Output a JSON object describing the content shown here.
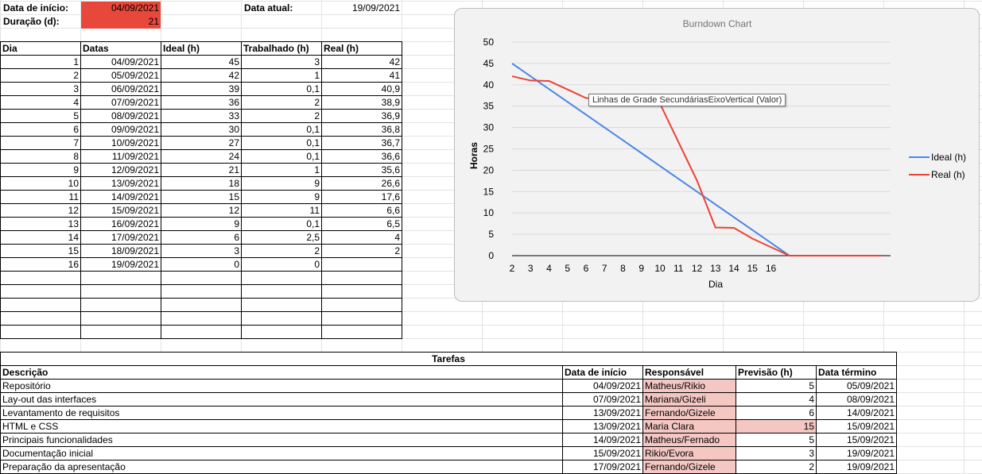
{
  "header": {
    "start_label": "Data de início:",
    "start_value": "04/09/2021",
    "duration_label": "Duração (d):",
    "duration_value": "21",
    "current_label": "Data atual:",
    "current_value": "19/09/2021"
  },
  "burndown_table": {
    "headers": [
      "Dia",
      "Datas",
      "Ideal (h)",
      "Trabalhado (h)",
      "Real (h)"
    ],
    "rows": [
      [
        "1",
        "04/09/2021",
        "45",
        "3",
        "42"
      ],
      [
        "2",
        "05/09/2021",
        "42",
        "1",
        "41"
      ],
      [
        "3",
        "06/09/2021",
        "39",
        "0,1",
        "40,9"
      ],
      [
        "4",
        "07/09/2021",
        "36",
        "2",
        "38,9"
      ],
      [
        "5",
        "08/09/2021",
        "33",
        "2",
        "36,9"
      ],
      [
        "6",
        "09/09/2021",
        "30",
        "0,1",
        "36,8"
      ],
      [
        "7",
        "10/09/2021",
        "27",
        "0,1",
        "36,7"
      ],
      [
        "8",
        "11/09/2021",
        "24",
        "0,1",
        "36,6"
      ],
      [
        "9",
        "12/09/2021",
        "21",
        "1",
        "35,6"
      ],
      [
        "10",
        "13/09/2021",
        "18",
        "9",
        "26,6"
      ],
      [
        "11",
        "14/09/2021",
        "15",
        "9",
        "17,6"
      ],
      [
        "12",
        "15/09/2021",
        "12",
        "11",
        "6,6"
      ],
      [
        "13",
        "16/09/2021",
        "9",
        "0,1",
        "6,5"
      ],
      [
        "14",
        "17/09/2021",
        "6",
        "2,5",
        "4"
      ],
      [
        "15",
        "18/09/2021",
        "3",
        "2",
        "2"
      ],
      [
        "16",
        "19/09/2021",
        "0",
        "0",
        ""
      ]
    ]
  },
  "tasks": {
    "title": "Tarefas",
    "headers": [
      "Descrição",
      "Data de início",
      "Responsável",
      "Previsão (h)",
      "Data término"
    ],
    "rows": [
      [
        "Repositório",
        "04/09/2021",
        "Matheus/Rikio",
        "5",
        "05/09/2021"
      ],
      [
        "Lay-out das interfaces",
        "07/09/2021",
        "Mariana/Gizeli",
        "4",
        "08/09/2021"
      ],
      [
        "Levantamento de requisitos",
        "13/09/2021",
        "Fernando/Gizele",
        "6",
        "14/09/2021"
      ],
      [
        "HTML e CSS",
        "13/09/2021",
        "Maria Clara",
        "15",
        "15/09/2021"
      ],
      [
        "Principais funcionalidades",
        "14/09/2021",
        "Matheus/Fernado",
        "5",
        "15/09/2021"
      ],
      [
        "Documentação inicial",
        "15/09/2021",
        "Rikio/Evora",
        "3",
        "19/09/2021"
      ],
      [
        "Preparação da apresentação",
        "17/09/2021",
        "Fernando/Gizele",
        "2",
        "19/09/2021"
      ]
    ]
  },
  "tooltip": "Linhas de Grade SecundáriasEixoVertical (Valor)",
  "chart_data": {
    "type": "line",
    "title": "Burndown Chart",
    "xlabel": "Dia",
    "ylabel": "Horas",
    "x_ticks": [
      "2",
      "3",
      "4",
      "5",
      "6",
      "7",
      "8",
      "9",
      "10",
      "11",
      "12",
      "13",
      "14",
      "15",
      "16"
    ],
    "ylim": [
      0,
      50
    ],
    "y_ticks": [
      0,
      5,
      10,
      15,
      20,
      25,
      30,
      35,
      40,
      45,
      50
    ],
    "legend_position": "right",
    "series": [
      {
        "name": "Ideal (h)",
        "color": "#4a86e8",
        "values": [
          45,
          42,
          39,
          36,
          33,
          30,
          27,
          24,
          21,
          18,
          15,
          12,
          9,
          6,
          3,
          0,
          0,
          0,
          0,
          0,
          0
        ]
      },
      {
        "name": "Real (h)",
        "color": "#ea4335",
        "values": [
          42,
          41,
          40.9,
          38.9,
          36.9,
          36.8,
          36.7,
          36.6,
          35.6,
          26.6,
          17.6,
          6.6,
          6.5,
          4,
          2,
          0,
          0,
          0,
          0,
          0,
          0
        ]
      }
    ]
  }
}
